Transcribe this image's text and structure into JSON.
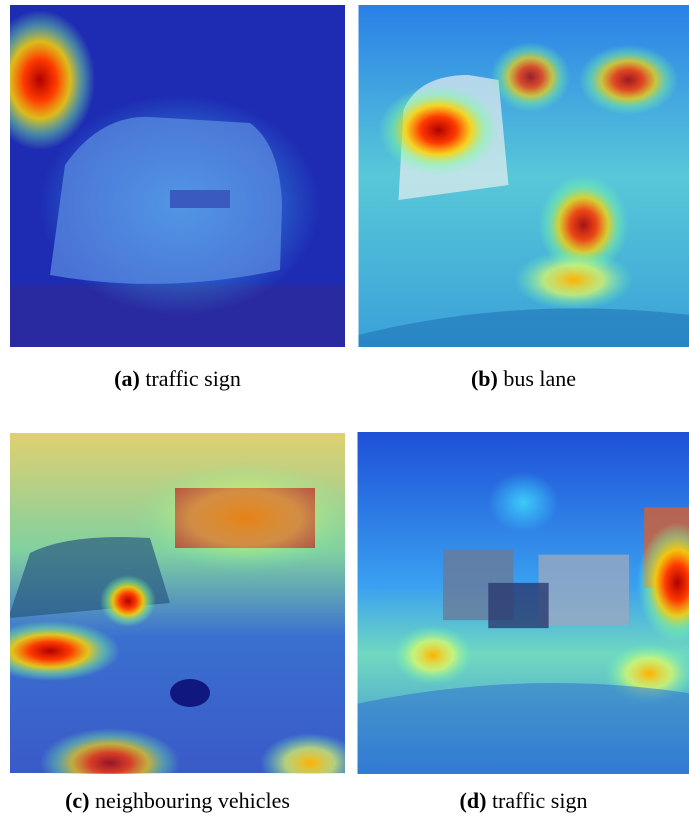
{
  "figures": [
    {
      "label": "(a)",
      "caption": "traffic sign"
    },
    {
      "label": "(b)",
      "caption": "bus lane"
    },
    {
      "label": "(c)",
      "caption": "neighbouring vehicles"
    },
    {
      "label": "(d)",
      "caption": "traffic sign"
    }
  ]
}
